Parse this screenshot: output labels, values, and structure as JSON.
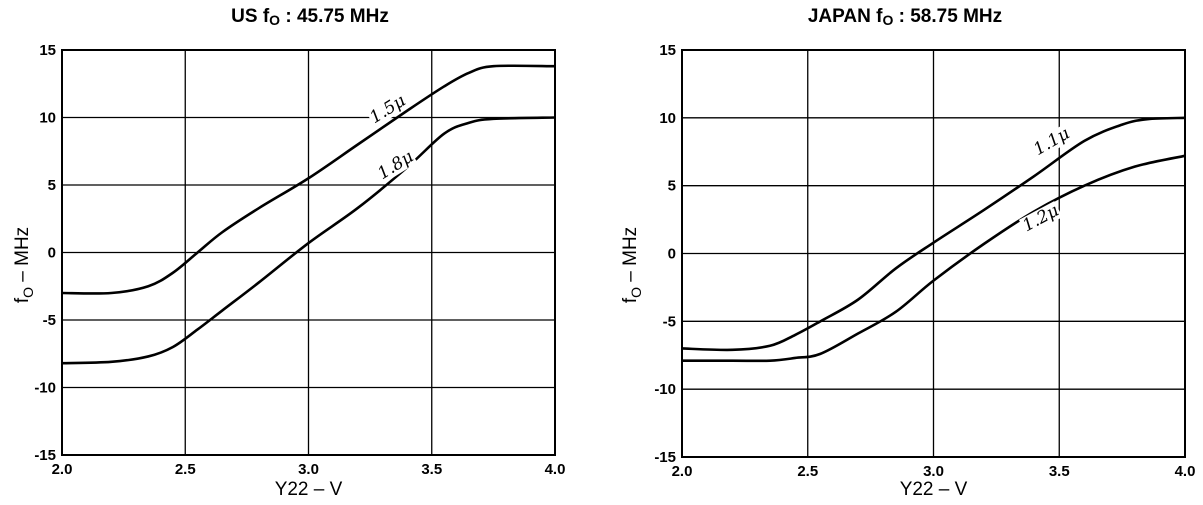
{
  "chart_data": [
    {
      "type": "line",
      "title_main": "US f",
      "title_sub": "O",
      "title_rest": " : 45.75 MHz",
      "xlabel": "Y22 – V",
      "ylabel_main": "f",
      "ylabel_sub": "O",
      "ylabel_rest": " – MHz",
      "xlim": [
        2.0,
        4.0
      ],
      "ylim": [
        -15,
        15
      ],
      "xticks": [
        "2.0",
        "2.5",
        "3.0",
        "3.5",
        "4.0"
      ],
      "yticks": [
        "15",
        "10",
        "5",
        "0",
        "-5",
        "-10",
        "-15"
      ],
      "grid": true,
      "series": [
        {
          "name": "1.5μ",
          "x": [
            2.0,
            2.2,
            2.35,
            2.45,
            2.55,
            2.65,
            2.8,
            3.0,
            3.2,
            3.4,
            3.55,
            3.65,
            3.75,
            4.0
          ],
          "y": [
            -3.0,
            -3.0,
            -2.5,
            -1.5,
            0.0,
            1.5,
            3.3,
            5.5,
            8.0,
            10.5,
            12.3,
            13.3,
            13.8,
            13.8
          ]
        },
        {
          "name": "1.8μ",
          "x": [
            2.0,
            2.2,
            2.35,
            2.45,
            2.55,
            2.65,
            2.8,
            3.0,
            3.2,
            3.4,
            3.55,
            3.65,
            3.75,
            4.0
          ],
          "y": [
            -8.2,
            -8.1,
            -7.7,
            -7.0,
            -5.7,
            -4.3,
            -2.2,
            0.7,
            3.3,
            6.3,
            8.8,
            9.6,
            9.9,
            10.0
          ]
        }
      ]
    },
    {
      "type": "line",
      "title_main": "JAPAN f",
      "title_sub": "O",
      "title_rest": " : 58.75 MHz",
      "xlabel": "Y22 – V",
      "ylabel_main": "f",
      "ylabel_sub": "O",
      "ylabel_rest": " – MHz",
      "xlim": [
        2.0,
        4.0
      ],
      "ylim": [
        -15,
        15
      ],
      "xticks": [
        "2.0",
        "2.5",
        "3.0",
        "3.5",
        "4.0"
      ],
      "yticks": [
        "15",
        "10",
        "5",
        "0",
        "-5",
        "-10",
        "-15"
      ],
      "grid": true,
      "series": [
        {
          "name": "1.1μ",
          "x": [
            2.0,
            2.2,
            2.35,
            2.45,
            2.55,
            2.7,
            2.85,
            3.0,
            3.2,
            3.4,
            3.6,
            3.75,
            3.85,
            4.0
          ],
          "y": [
            -7.0,
            -7.1,
            -6.8,
            -6.0,
            -5.0,
            -3.4,
            -1.1,
            0.8,
            3.2,
            5.7,
            8.3,
            9.5,
            9.9,
            10.0
          ]
        },
        {
          "name": "1.2μ",
          "x": [
            2.0,
            2.2,
            2.35,
            2.45,
            2.55,
            2.7,
            2.85,
            3.0,
            3.2,
            3.4,
            3.6,
            3.8,
            4.0
          ],
          "y": [
            -7.9,
            -7.9,
            -7.9,
            -7.7,
            -7.4,
            -5.9,
            -4.3,
            -2.0,
            0.7,
            3.1,
            5.0,
            6.4,
            7.2
          ]
        }
      ]
    }
  ]
}
